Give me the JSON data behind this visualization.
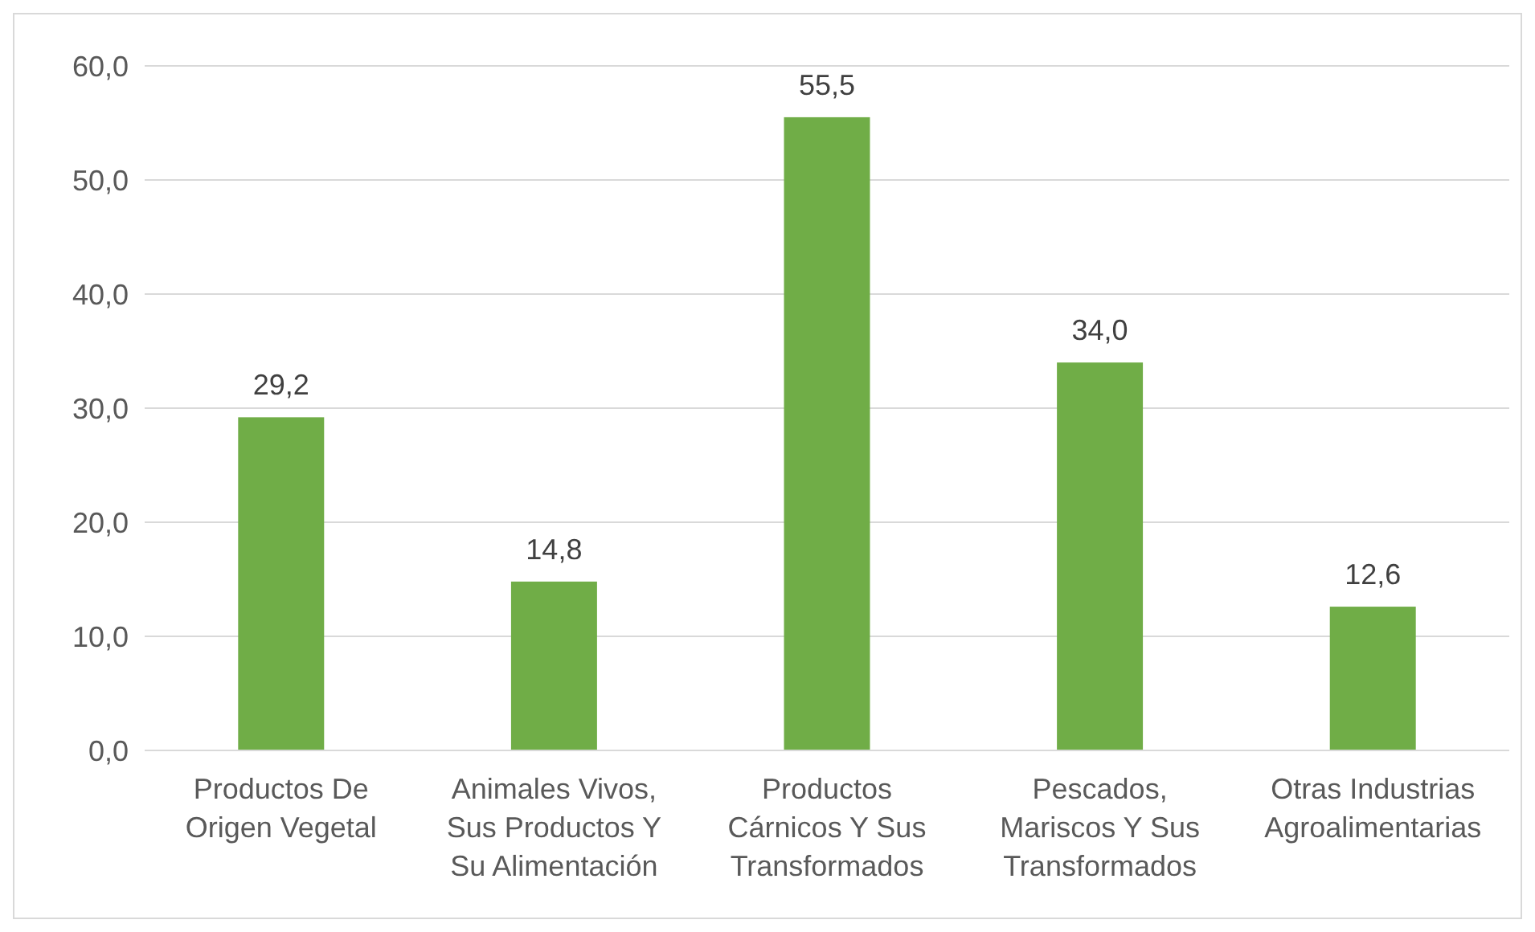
{
  "chart_data": {
    "type": "bar",
    "categories": [
      "Productos De Origen Vegetal",
      "Animales Vivos, Sus Productos Y Su Alimentación",
      "Productos Cárnicos Y Sus Transformados",
      "Pescados, Mariscos Y Sus Transformados",
      "Otras Industrias Agroalimentarias"
    ],
    "values": [
      29.2,
      14.8,
      55.5,
      34.0,
      12.6
    ],
    "value_labels": [
      "29,2",
      "14,8",
      "55,5",
      "34,0",
      "12,6"
    ],
    "color": "#70ad47",
    "ylim": [
      0,
      60
    ],
    "yticks": [
      {
        "value": 0,
        "label": "0,0"
      },
      {
        "value": 10,
        "label": "10,0"
      },
      {
        "value": 20,
        "label": "20,0"
      },
      {
        "value": 30,
        "label": "30,0"
      },
      {
        "value": 40,
        "label": "40,0"
      },
      {
        "value": 50,
        "label": "50,0"
      },
      {
        "value": 60,
        "label": "60,0"
      }
    ],
    "grid": "y"
  }
}
